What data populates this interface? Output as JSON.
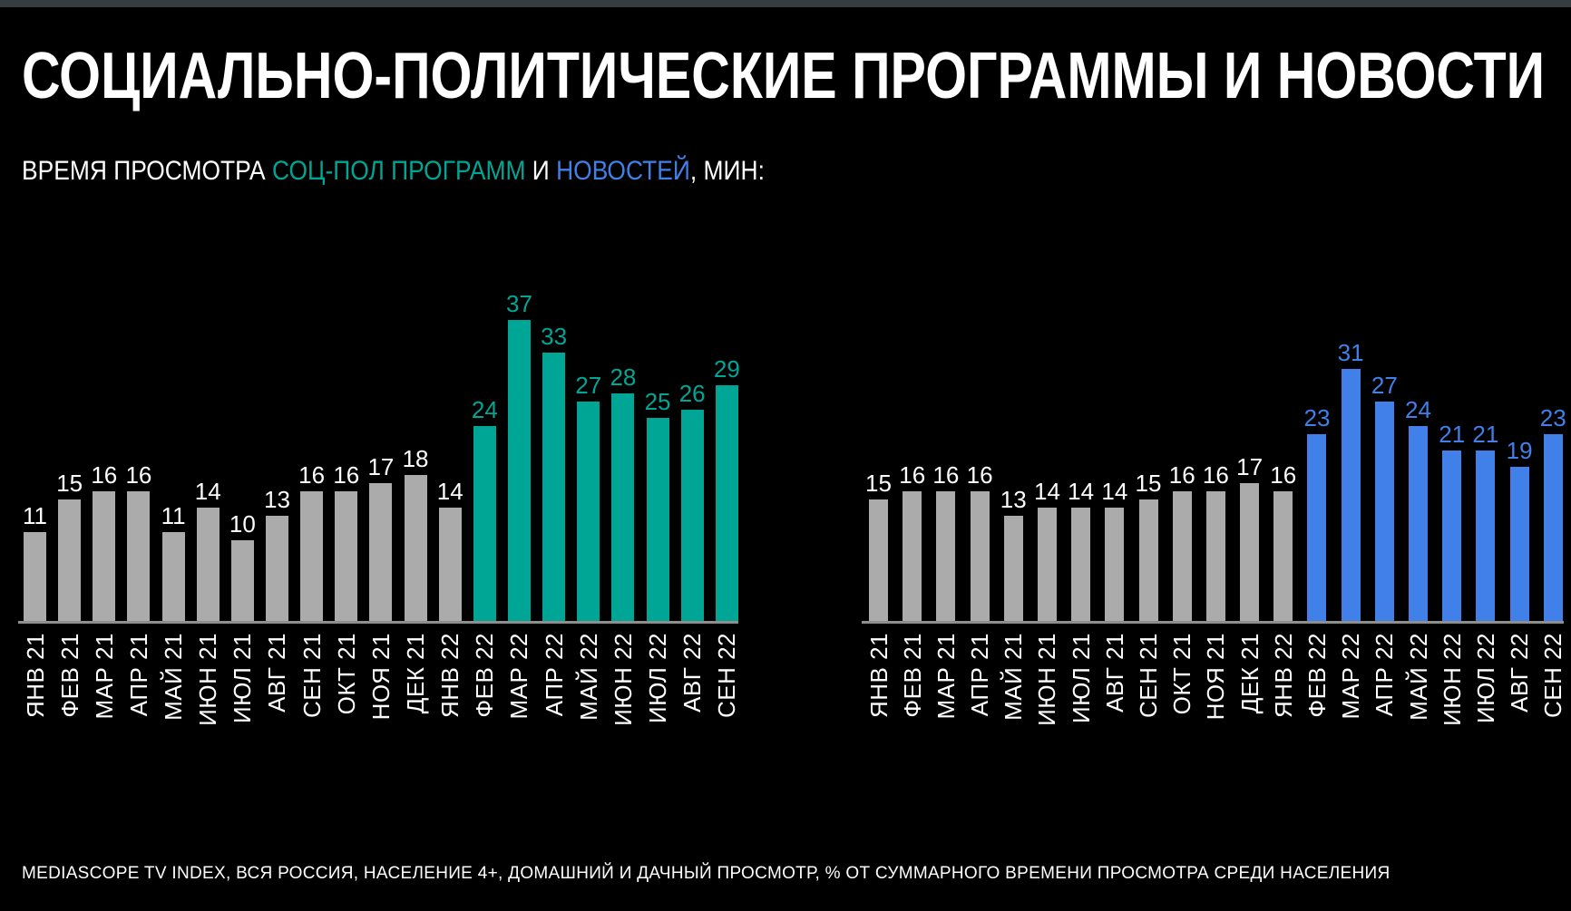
{
  "page": {
    "title": "СОЦИАЛЬНО-ПОЛИТИЧЕСКИЕ ПРОГРАММЫ И НОВОСТИ",
    "subtitle": {
      "prefix": "ВРЕМЯ ПРОСМОТРА ",
      "highlight_socpol": "СОЦ-ПОЛ ПРОГРАММ",
      "middle": " И ",
      "highlight_news": "НОВОСТЕЙ",
      "suffix": ", МИН:"
    },
    "footer": "MEDIASCOPE TV INDEX, ВСЯ РОССИЯ, НАСЕЛЕНИЕ 4+, ДОМАШНИЙ И ДАЧНЫЙ ПРОСМОТР, % ОТ СУММАРНОГО ВРЕМЕНИ ПРОСМОТРА СРЕДИ НАСЕЛЕНИЯ"
  },
  "colors": {
    "background": "#000000",
    "top_strip": "#353D40",
    "text": "#FFFFFF",
    "bar_gray": "#ABABAB",
    "teal": "#00A695",
    "blue": "#4180E8",
    "axis": "#8E8E8E"
  },
  "chart_data": [
    {
      "type": "bar",
      "name": "СОЦ-ПОЛ ПРОГРАММ",
      "title": "ВРЕМЯ ПРОСМОТРА СОЦ-ПОЛ ПРОГРАММ, МИН",
      "categories": [
        "ЯНВ 21",
        "ФЕВ 21",
        "МАР 21",
        "АПР 21",
        "МАЙ 21",
        "ИЮН 21",
        "ИЮЛ 21",
        "АВГ 21",
        "СЕН 21",
        "ОКТ 21",
        "НОЯ 21",
        "ДЕК 21",
        "ЯНВ 22",
        "ФЕВ 22",
        "МАР 22",
        "АПР 22",
        "МАЙ 22",
        "ИЮН 22",
        "ИЮЛ 22",
        "АВГ 22",
        "СЕН 22"
      ],
      "values": [
        11,
        15,
        16,
        16,
        11,
        14,
        10,
        13,
        16,
        16,
        17,
        18,
        14,
        24,
        37,
        33,
        27,
        28,
        25,
        26,
        29
      ],
      "highlight_start_index": 13,
      "base_color": "#ABABAB",
      "highlight_color": "#00A695",
      "xlabel": "",
      "ylabel": "МИН",
      "ylim": [
        0,
        40
      ],
      "grid": false,
      "value_labels": true
    },
    {
      "type": "bar",
      "name": "НОВОСТИ",
      "title": "ВРЕМЯ ПРОСМОТРА НОВОСТЕЙ, МИН",
      "categories": [
        "ЯНВ 21",
        "ФЕВ 21",
        "МАР 21",
        "АПР 21",
        "МАЙ 21",
        "ИЮН 21",
        "ИЮЛ 21",
        "АВГ 21",
        "СЕН 21",
        "ОКТ 21",
        "НОЯ 21",
        "ДЕК 21",
        "ЯНВ 22",
        "ФЕВ 22",
        "МАР 22",
        "АПР 22",
        "МАЙ 22",
        "ИЮН 22",
        "ИЮЛ 22",
        "АВГ 22",
        "СЕН 22"
      ],
      "values": [
        15,
        16,
        16,
        16,
        13,
        14,
        14,
        14,
        15,
        16,
        16,
        17,
        16,
        23,
        31,
        27,
        24,
        21,
        21,
        19,
        23
      ],
      "highlight_start_index": 13,
      "base_color": "#ABABAB",
      "highlight_color": "#4180E8",
      "xlabel": "",
      "ylabel": "МИН",
      "ylim": [
        0,
        40
      ],
      "grid": false,
      "value_labels": true
    }
  ]
}
